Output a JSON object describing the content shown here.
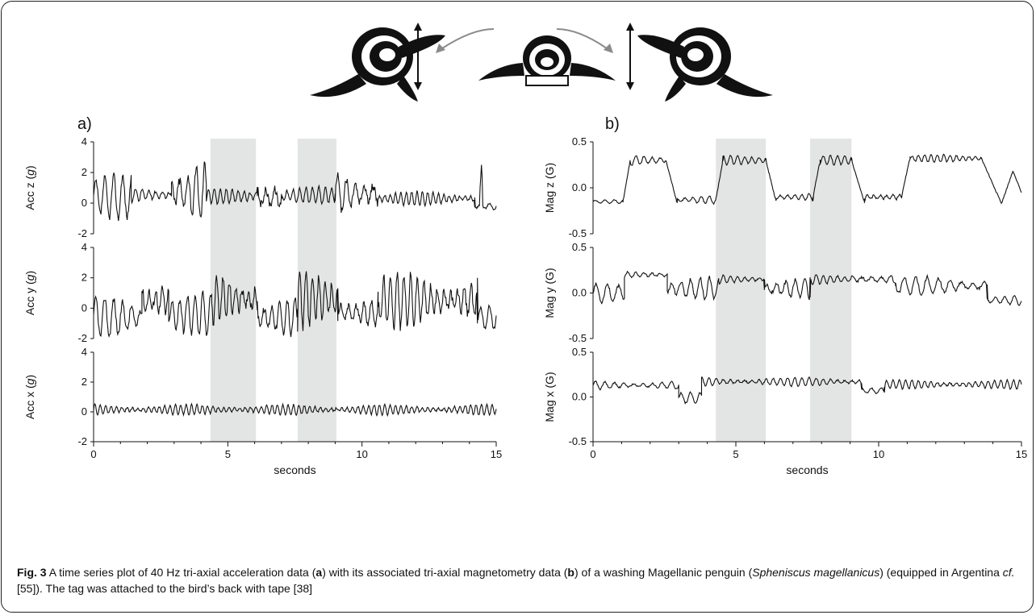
{
  "figure": {
    "caption_label": "Fig. 3",
    "caption_text": "A time series plot of 40 Hz tri-axial acceleration data (a) with its associated tri-axial magnetometry data (b) of a washing Magellanic penguin (Spheniscus magellanicus) (equipped in Argentina cf. [55]). The tag was attached to the bird’s back with tape [38]",
    "caption_parts": [
      {
        "t": "A time series plot of 40 Hz tri-axial acceleration data (",
        "s": ""
      },
      {
        "t": "a",
        "s": "b"
      },
      {
        "t": ") with its associated tri-axial magnetometry data (",
        "s": ""
      },
      {
        "t": "b",
        "s": "b"
      },
      {
        "t": ") of a washing Magellanic penguin (",
        "s": ""
      },
      {
        "t": "Spheniscus magellanicus",
        "s": "i"
      },
      {
        "t": ") (equipped in Argentina ",
        "s": ""
      },
      {
        "t": "cf.",
        "s": "i"
      },
      {
        "t": " [55]). The tag was attached to the bird’s back with tape [38]",
        "s": ""
      }
    ],
    "colors": {
      "line": "#111111",
      "shade": "#e3e5e4",
      "penguin": "#111111",
      "arrow_grey": "#8a8a8a"
    }
  },
  "chart_data": [
    {
      "type": "line",
      "panel": "a)",
      "xlabel": "seconds",
      "xlim": [
        0,
        15
      ],
      "xticks": [
        0,
        5,
        10,
        15
      ],
      "shaded_intervals": [
        [
          4.35,
          6.05
        ],
        [
          7.6,
          9.05
        ]
      ],
      "subplots": [
        {
          "ylabel": "Acc z (g)",
          "ylabel_main": "Acc z (",
          "ylabel_unit": "g",
          "ylabel_end": ")",
          "ylim": [
            -2,
            4
          ],
          "yticks": [
            -2,
            0,
            2,
            4
          ],
          "series": [
            {
              "segments": [
                {
                  "t": [
                    0,
                    1.4
                  ],
                  "base": 0.4,
                  "amp": 1.4,
                  "freq": 3.0
                },
                {
                  "t": [
                    1.4,
                    2.9
                  ],
                  "base": 0.55,
                  "amp": 0.55,
                  "freq": 4.0
                },
                {
                  "t": [
                    2.9,
                    4.2
                  ],
                  "base": 0.7,
                  "amp": 2.1,
                  "freq": 3.2
                },
                {
                  "t": [
                    4.2,
                    6.1
                  ],
                  "base": 0.45,
                  "amp": 0.5,
                  "freq": 4.5
                },
                {
                  "t": [
                    6.1,
                    7.0
                  ],
                  "base": 0.4,
                  "amp": 1.5,
                  "freq": 3.0
                },
                {
                  "t": [
                    7.0,
                    9.0
                  ],
                  "base": 0.5,
                  "amp": 0.55,
                  "freq": 4.2
                },
                {
                  "t": [
                    9.0,
                    10.6
                  ],
                  "base": 0.6,
                  "amp": 1.7,
                  "freq": 3.0
                },
                {
                  "t": [
                    10.6,
                    14.2
                  ],
                  "base": 0.3,
                  "amp": 0.45,
                  "freq": 5.0
                },
                {
                  "t": [
                    14.2,
                    15
                  ],
                  "base": -0.2,
                  "amp": 0.3,
                  "freq": 3.0
                }
              ],
              "spikes": [
                {
                  "t": 14.45,
                  "v": 2.5
                }
              ]
            }
          ]
        },
        {
          "ylabel": "Acc y (g)",
          "ylabel_main": "Acc y (",
          "ylabel_unit": "g",
          "ylabel_end": ")",
          "ylim": [
            -2,
            4
          ],
          "yticks": [
            -2,
            0,
            2,
            4
          ],
          "series": [
            {
              "segments": [
                {
                  "t": [
                    0,
                    1.8
                  ],
                  "base": -0.6,
                  "amp": 1.3,
                  "freq": 3.0
                },
                {
                  "t": [
                    1.8,
                    2.8
                  ],
                  "base": 0.5,
                  "amp": 2.0,
                  "freq": 4.0
                },
                {
                  "t": [
                    2.8,
                    4.4
                  ],
                  "base": -0.4,
                  "amp": 1.4,
                  "freq": 3.5
                },
                {
                  "t": [
                    4.4,
                    6.1
                  ],
                  "base": 0.6,
                  "amp": 1.8,
                  "freq": 4.2
                },
                {
                  "t": [
                    6.1,
                    7.6
                  ],
                  "base": -0.6,
                  "amp": 1.3,
                  "freq": 3.5
                },
                {
                  "t": [
                    7.6,
                    9.1
                  ],
                  "base": 0.6,
                  "amp": 1.8,
                  "freq": 4.2
                },
                {
                  "t": [
                    9.1,
                    10.6
                  ],
                  "base": -0.3,
                  "amp": 1.4,
                  "freq": 3.5
                },
                {
                  "t": [
                    10.6,
                    14.3
                  ],
                  "base": 0.5,
                  "amp": 1.8,
                  "freq": 4.0
                },
                {
                  "t": [
                    14.3,
                    15
                  ],
                  "base": -0.6,
                  "amp": 0.8,
                  "freq": 3.0
                }
              ],
              "spikes": []
            }
          ]
        },
        {
          "ylabel": "Acc x (g)",
          "ylabel_main": "Acc x (",
          "ylabel_unit": "g",
          "ylabel_end": ")",
          "ylim": [
            -2,
            4
          ],
          "yticks": [
            -2,
            0,
            2,
            4
          ],
          "series": [
            {
              "segments": [
                {
                  "t": [
                    0,
                    15
                  ],
                  "base": 0.15,
                  "amp": 0.35,
                  "freq": 5.0
                }
              ],
              "spikes": []
            }
          ]
        }
      ]
    },
    {
      "type": "line",
      "panel": "b)",
      "xlabel": "seconds",
      "xlim": [
        0,
        15
      ],
      "xticks": [
        0,
        5,
        10,
        15
      ],
      "shaded_intervals": [
        [
          4.3,
          6.05
        ],
        [
          7.6,
          9.05
        ]
      ],
      "subplots": [
        {
          "ylabel": "Mag z (G)",
          "ylabel_main": "Mag z (G)",
          "ylabel_unit": "",
          "ylabel_end": "",
          "ylim": [
            -0.5,
            0.5
          ],
          "yticks": [
            -0.5,
            0.0,
            0.5
          ],
          "series": [
            {
              "segments": [
                {
                  "t": [
                    0,
                    1.05
                  ],
                  "base": -0.15,
                  "amp": 0.02,
                  "freq": 3.0
                },
                {
                  "t": [
                    1.05,
                    1.3
                  ],
                  "ramp": [
                    -0.15,
                    0.3
                  ]
                },
                {
                  "t": [
                    1.3,
                    2.55
                  ],
                  "base": 0.3,
                  "amp": 0.06,
                  "freq": 3.5
                },
                {
                  "t": [
                    2.55,
                    2.95
                  ],
                  "ramp": [
                    0.3,
                    -0.17
                  ]
                },
                {
                  "t": [
                    2.95,
                    4.3
                  ],
                  "base": -0.13,
                  "amp": 0.05,
                  "freq": 3.5
                },
                {
                  "t": [
                    4.3,
                    4.55
                  ],
                  "ramp": [
                    -0.13,
                    0.3
                  ]
                },
                {
                  "t": [
                    4.55,
                    6.05
                  ],
                  "base": 0.3,
                  "amp": 0.05,
                  "freq": 4.0
                },
                {
                  "t": [
                    6.05,
                    6.4
                  ],
                  "ramp": [
                    0.3,
                    -0.14
                  ]
                },
                {
                  "t": [
                    6.4,
                    7.7
                  ],
                  "base": -0.1,
                  "amp": 0.05,
                  "freq": 4.0
                },
                {
                  "t": [
                    7.7,
                    7.95
                  ],
                  "ramp": [
                    -0.1,
                    0.3
                  ]
                },
                {
                  "t": [
                    7.95,
                    9.05
                  ],
                  "base": 0.3,
                  "amp": 0.05,
                  "freq": 4.0
                },
                {
                  "t": [
                    9.05,
                    9.5
                  ],
                  "ramp": [
                    0.3,
                    -0.16
                  ]
                },
                {
                  "t": [
                    9.5,
                    10.8
                  ],
                  "base": -0.1,
                  "amp": 0.06,
                  "freq": 4.5
                },
                {
                  "t": [
                    10.8,
                    11.1
                  ],
                  "ramp": [
                    -0.1,
                    0.33
                  ]
                },
                {
                  "t": [
                    11.1,
                    13.6
                  ],
                  "base": 0.32,
                  "amp": 0.04,
                  "freq": 4.5
                },
                {
                  "t": [
                    13.6,
                    14.3
                  ],
                  "ramp": [
                    0.32,
                    -0.17
                  ]
                },
                {
                  "t": [
                    14.3,
                    14.7
                  ],
                  "ramp": [
                    -0.17,
                    0.18
                  ]
                },
                {
                  "t": [
                    14.7,
                    15
                  ],
                  "ramp": [
                    0.18,
                    -0.05
                  ]
                }
              ],
              "spikes": []
            }
          ]
        },
        {
          "ylabel": "Mag y (G)",
          "ylabel_main": "Mag y (G)",
          "ylabel_unit": "",
          "ylabel_end": "",
          "ylim": [
            -0.5,
            0.5
          ],
          "yticks": [
            -0.5,
            0.0,
            0.5
          ],
          "series": [
            {
              "segments": [
                {
                  "t": [
                    0,
                    1.1
                  ],
                  "base": 0.0,
                  "amp": 0.1,
                  "freq": 2.5
                },
                {
                  "t": [
                    1.1,
                    2.6
                  ],
                  "base": 0.2,
                  "amp": 0.05,
                  "freq": 3.5
                },
                {
                  "t": [
                    2.6,
                    4.4
                  ],
                  "base": 0.05,
                  "amp": 0.12,
                  "freq": 3.0
                },
                {
                  "t": [
                    4.4,
                    6.0
                  ],
                  "base": 0.15,
                  "amp": 0.05,
                  "freq": 4.0
                },
                {
                  "t": [
                    6.0,
                    7.6
                  ],
                  "base": 0.05,
                  "amp": 0.12,
                  "freq": 3.0
                },
                {
                  "t": [
                    7.6,
                    9.0
                  ],
                  "base": 0.15,
                  "amp": 0.05,
                  "freq": 4.0
                },
                {
                  "t": [
                    9.0,
                    10.6
                  ],
                  "base": 0.15,
                  "amp": 0.07,
                  "freq": 3.0
                },
                {
                  "t": [
                    10.6,
                    13.8
                  ],
                  "base": 0.08,
                  "amp": 0.1,
                  "freq": 2.5
                },
                {
                  "t": [
                    13.8,
                    15
                  ],
                  "base": -0.08,
                  "amp": 0.05,
                  "freq": 3.0
                }
              ],
              "spikes": []
            }
          ]
        },
        {
          "ylabel": "Mag x (G)",
          "ylabel_main": "Mag x (G)",
          "ylabel_unit": "",
          "ylabel_end": "",
          "ylim": [
            -0.5,
            0.5
          ],
          "yticks": [
            -0.5,
            0.0,
            0.5
          ],
          "series": [
            {
              "segments": [
                {
                  "t": [
                    0,
                    3.0
                  ],
                  "base": 0.13,
                  "amp": 0.05,
                  "freq": 3.0
                },
                {
                  "t": [
                    3.0,
                    3.8
                  ],
                  "base": -0.01,
                  "amp": 0.06,
                  "freq": 3.0
                },
                {
                  "t": [
                    3.8,
                    9.4
                  ],
                  "base": 0.17,
                  "amp": 0.05,
                  "freq": 4.0
                },
                {
                  "t": [
                    9.4,
                    10.2
                  ],
                  "base": 0.07,
                  "amp": 0.05,
                  "freq": 3.0
                },
                {
                  "t": [
                    10.2,
                    15
                  ],
                  "base": 0.14,
                  "amp": 0.05,
                  "freq": 4.5
                }
              ],
              "spikes": []
            }
          ]
        }
      ]
    }
  ]
}
